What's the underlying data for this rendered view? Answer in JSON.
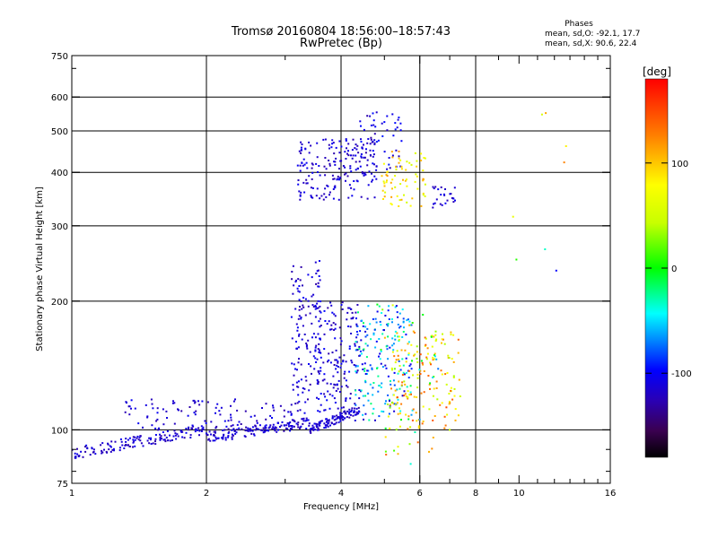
{
  "header": {
    "title_line1": "Tromsø 20160804 18:56:00–18:57:43",
    "title_line2": "RwPretec (Bp)",
    "phases_title": "Phases",
    "phase_o": "mean, sd,O: -92.1, 17.7",
    "phase_x": "mean, sd,X:  90.6, 22.4"
  },
  "colorbar": {
    "label": "[deg]",
    "range": [
      -180,
      180
    ],
    "ticks": [
      100,
      0,
      -100
    ]
  },
  "chart_data": {
    "type": "scatter",
    "xlabel": "Frequency [MHz]",
    "ylabel": "Stationary phase Virtual Height [km]",
    "x_scale": "log",
    "y_scale": "log",
    "xlim": [
      1,
      16
    ],
    "ylim": [
      75,
      750
    ],
    "xticks": [
      1,
      2,
      4,
      6,
      8,
      10,
      16
    ],
    "yticks": [
      75,
      100,
      200,
      300,
      400,
      500,
      600,
      750
    ],
    "x_gridlines": [
      2,
      4,
      6,
      8
    ],
    "y_gridlines": [
      100,
      200,
      300,
      400,
      500,
      600
    ],
    "point_groups": [
      {
        "x_range": [
          1.0,
          2.0
        ],
        "y_range": [
          88,
          100
        ],
        "phase_range": [
          -130,
          -100
        ],
        "count": 140,
        "curve": "low-E"
      },
      {
        "x_range": [
          2.0,
          3.4
        ],
        "y_range": [
          96,
          104
        ],
        "phase_range": [
          -130,
          -100
        ],
        "count": 140,
        "curve": "low-E"
      },
      {
        "x_range": [
          3.4,
          4.4
        ],
        "y_range": [
          100,
          112
        ],
        "phase_range": [
          -130,
          -100
        ],
        "count": 110,
        "curve": "rising"
      },
      {
        "x_range": [
          1.3,
          3.4
        ],
        "y_range": [
          100,
          118
        ],
        "phase_range": [
          -130,
          -100
        ],
        "count": 120
      },
      {
        "x_range": [
          3.1,
          3.6
        ],
        "y_range": [
          120,
          250
        ],
        "phase_range": [
          -130,
          -100
        ],
        "count": 120
      },
      {
        "x_range": [
          3.5,
          4.4
        ],
        "y_range": [
          110,
          200
        ],
        "phase_range": [
          -130,
          -95
        ],
        "count": 160
      },
      {
        "x_range": [
          4.3,
          5.8
        ],
        "y_range": [
          105,
          195
        ],
        "phase_range": [
          -120,
          -10
        ],
        "count": 200
      },
      {
        "x_range": [
          5.2,
          7.4
        ],
        "y_range": [
          100,
          170
        ],
        "phase_range": [
          30,
          150
        ],
        "count": 150
      },
      {
        "x_range": [
          4.8,
          6.6
        ],
        "y_range": [
          82,
          200
        ],
        "phase_range": [
          -80,
          150
        ],
        "count": 60
      },
      {
        "x_range": [
          3.2,
          4.8
        ],
        "y_range": [
          345,
          480
        ],
        "phase_range": [
          -130,
          -100
        ],
        "count": 180
      },
      {
        "x_range": [
          4.3,
          5.5
        ],
        "y_range": [
          400,
          560
        ],
        "phase_range": [
          -130,
          -90
        ],
        "count": 60
      },
      {
        "x_range": [
          4.9,
          6.2
        ],
        "y_range": [
          330,
          450
        ],
        "phase_range": [
          50,
          120
        ],
        "count": 70
      },
      {
        "x_range": [
          6.4,
          7.2
        ],
        "y_range": [
          330,
          370
        ],
        "phase_range": [
          -130,
          -100
        ],
        "count": 25
      },
      {
        "x_range": [
          7.5,
          14.5
        ],
        "y_range": [
          200,
          560
        ],
        "phase_range": [
          -110,
          140
        ],
        "count": 8
      }
    ]
  }
}
